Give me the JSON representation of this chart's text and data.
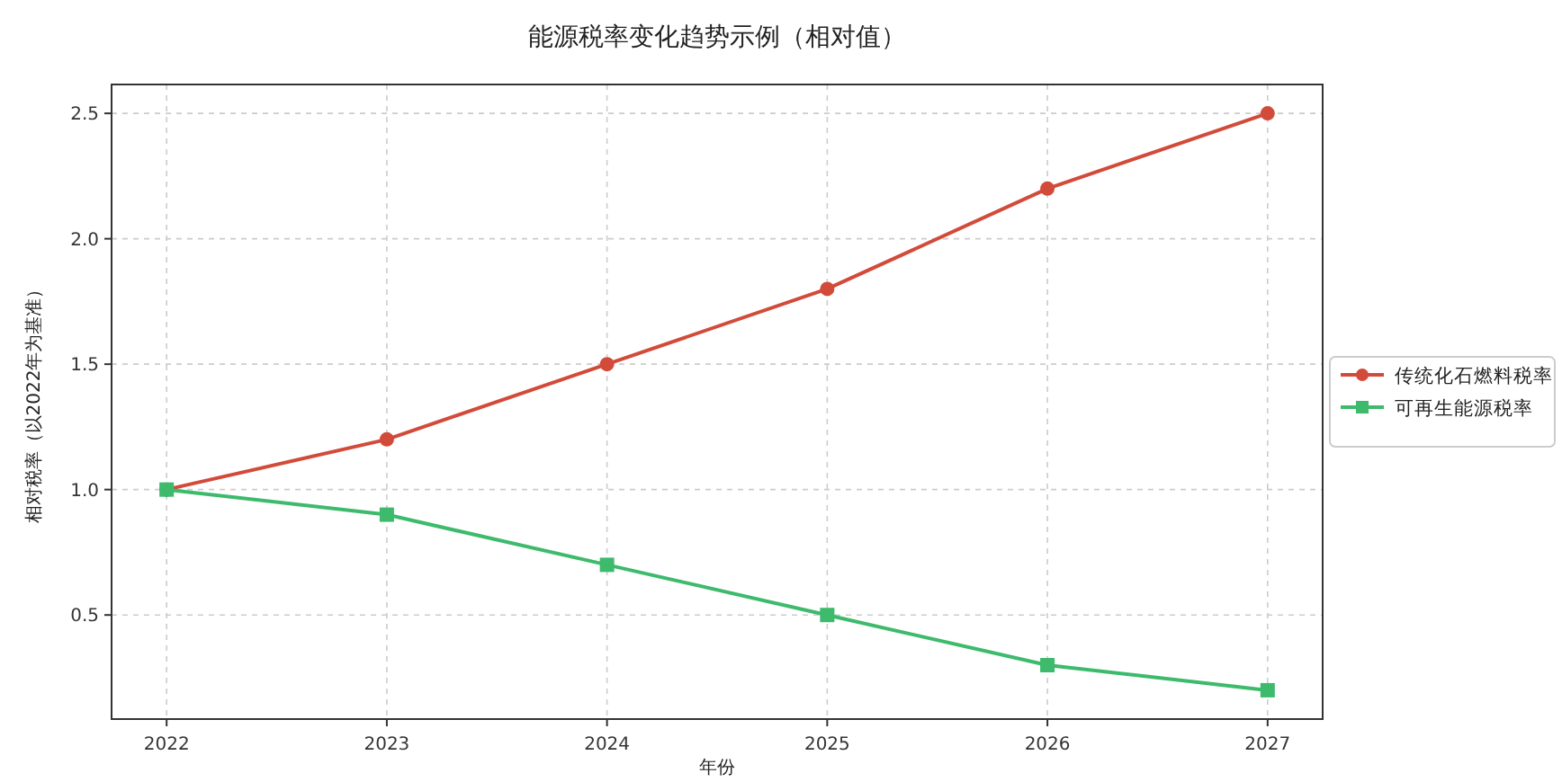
{
  "chart_data": {
    "type": "line",
    "title": "能源税率变化趋势示例（相对值）",
    "xlabel": "年份",
    "ylabel": "相对税率（以2022年为基准）",
    "x": [
      2022,
      2023,
      2024,
      2025,
      2026,
      2027
    ],
    "xlim": [
      2021.75,
      2027.25
    ],
    "xticks": [
      2022,
      2023,
      2024,
      2025,
      2026,
      2027
    ],
    "ylim": [
      0.085,
      2.615
    ],
    "yticks": [
      0.5,
      {
        "value": 1,
        "label": "1.0"
      },
      1.5,
      {
        "value": 2,
        "label": "2.0"
      },
      2.5
    ],
    "grid": true,
    "legend": "right",
    "line_style": "solid",
    "series": [
      {
        "name": "传统化石燃料税率",
        "color": "#d24b3a",
        "marker": "circle",
        "values": [
          1.0,
          1.2,
          1.5,
          1.8,
          2.2,
          2.5
        ]
      },
      {
        "name": "可再生能源税率",
        "color": "#3dba6c",
        "marker": "square",
        "values": [
          1.0,
          0.9,
          0.7,
          0.5,
          0.3,
          0.2
        ]
      }
    ]
  }
}
